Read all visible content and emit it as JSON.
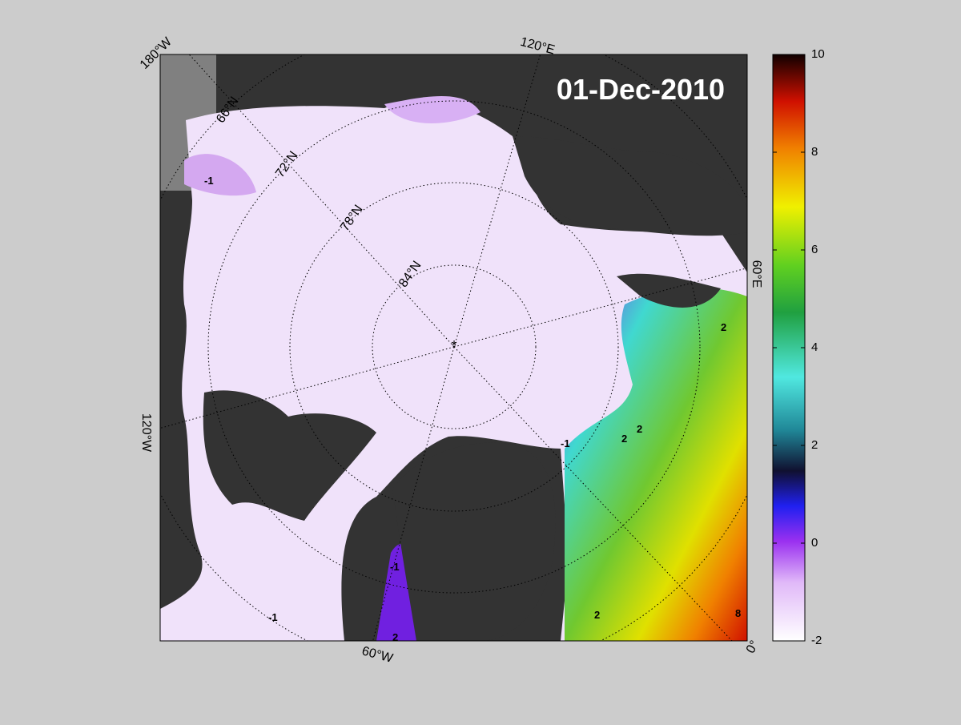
{
  "date_label": "01-Dec-2010",
  "longitude_labels": [
    "180°W",
    "120°E",
    "60°E",
    "0°",
    "60°W",
    "120°W"
  ],
  "latitude_labels": [
    "66°N",
    "72°N",
    "78°N",
    "84°N"
  ],
  "contour_labels": [
    -1,
    -1,
    -1,
    -1,
    2,
    2,
    2,
    2,
    2,
    8
  ],
  "colorbar": {
    "range": [
      -2,
      10
    ],
    "ticks": [
      -2,
      0,
      2,
      4,
      6,
      8,
      10
    ]
  }
}
